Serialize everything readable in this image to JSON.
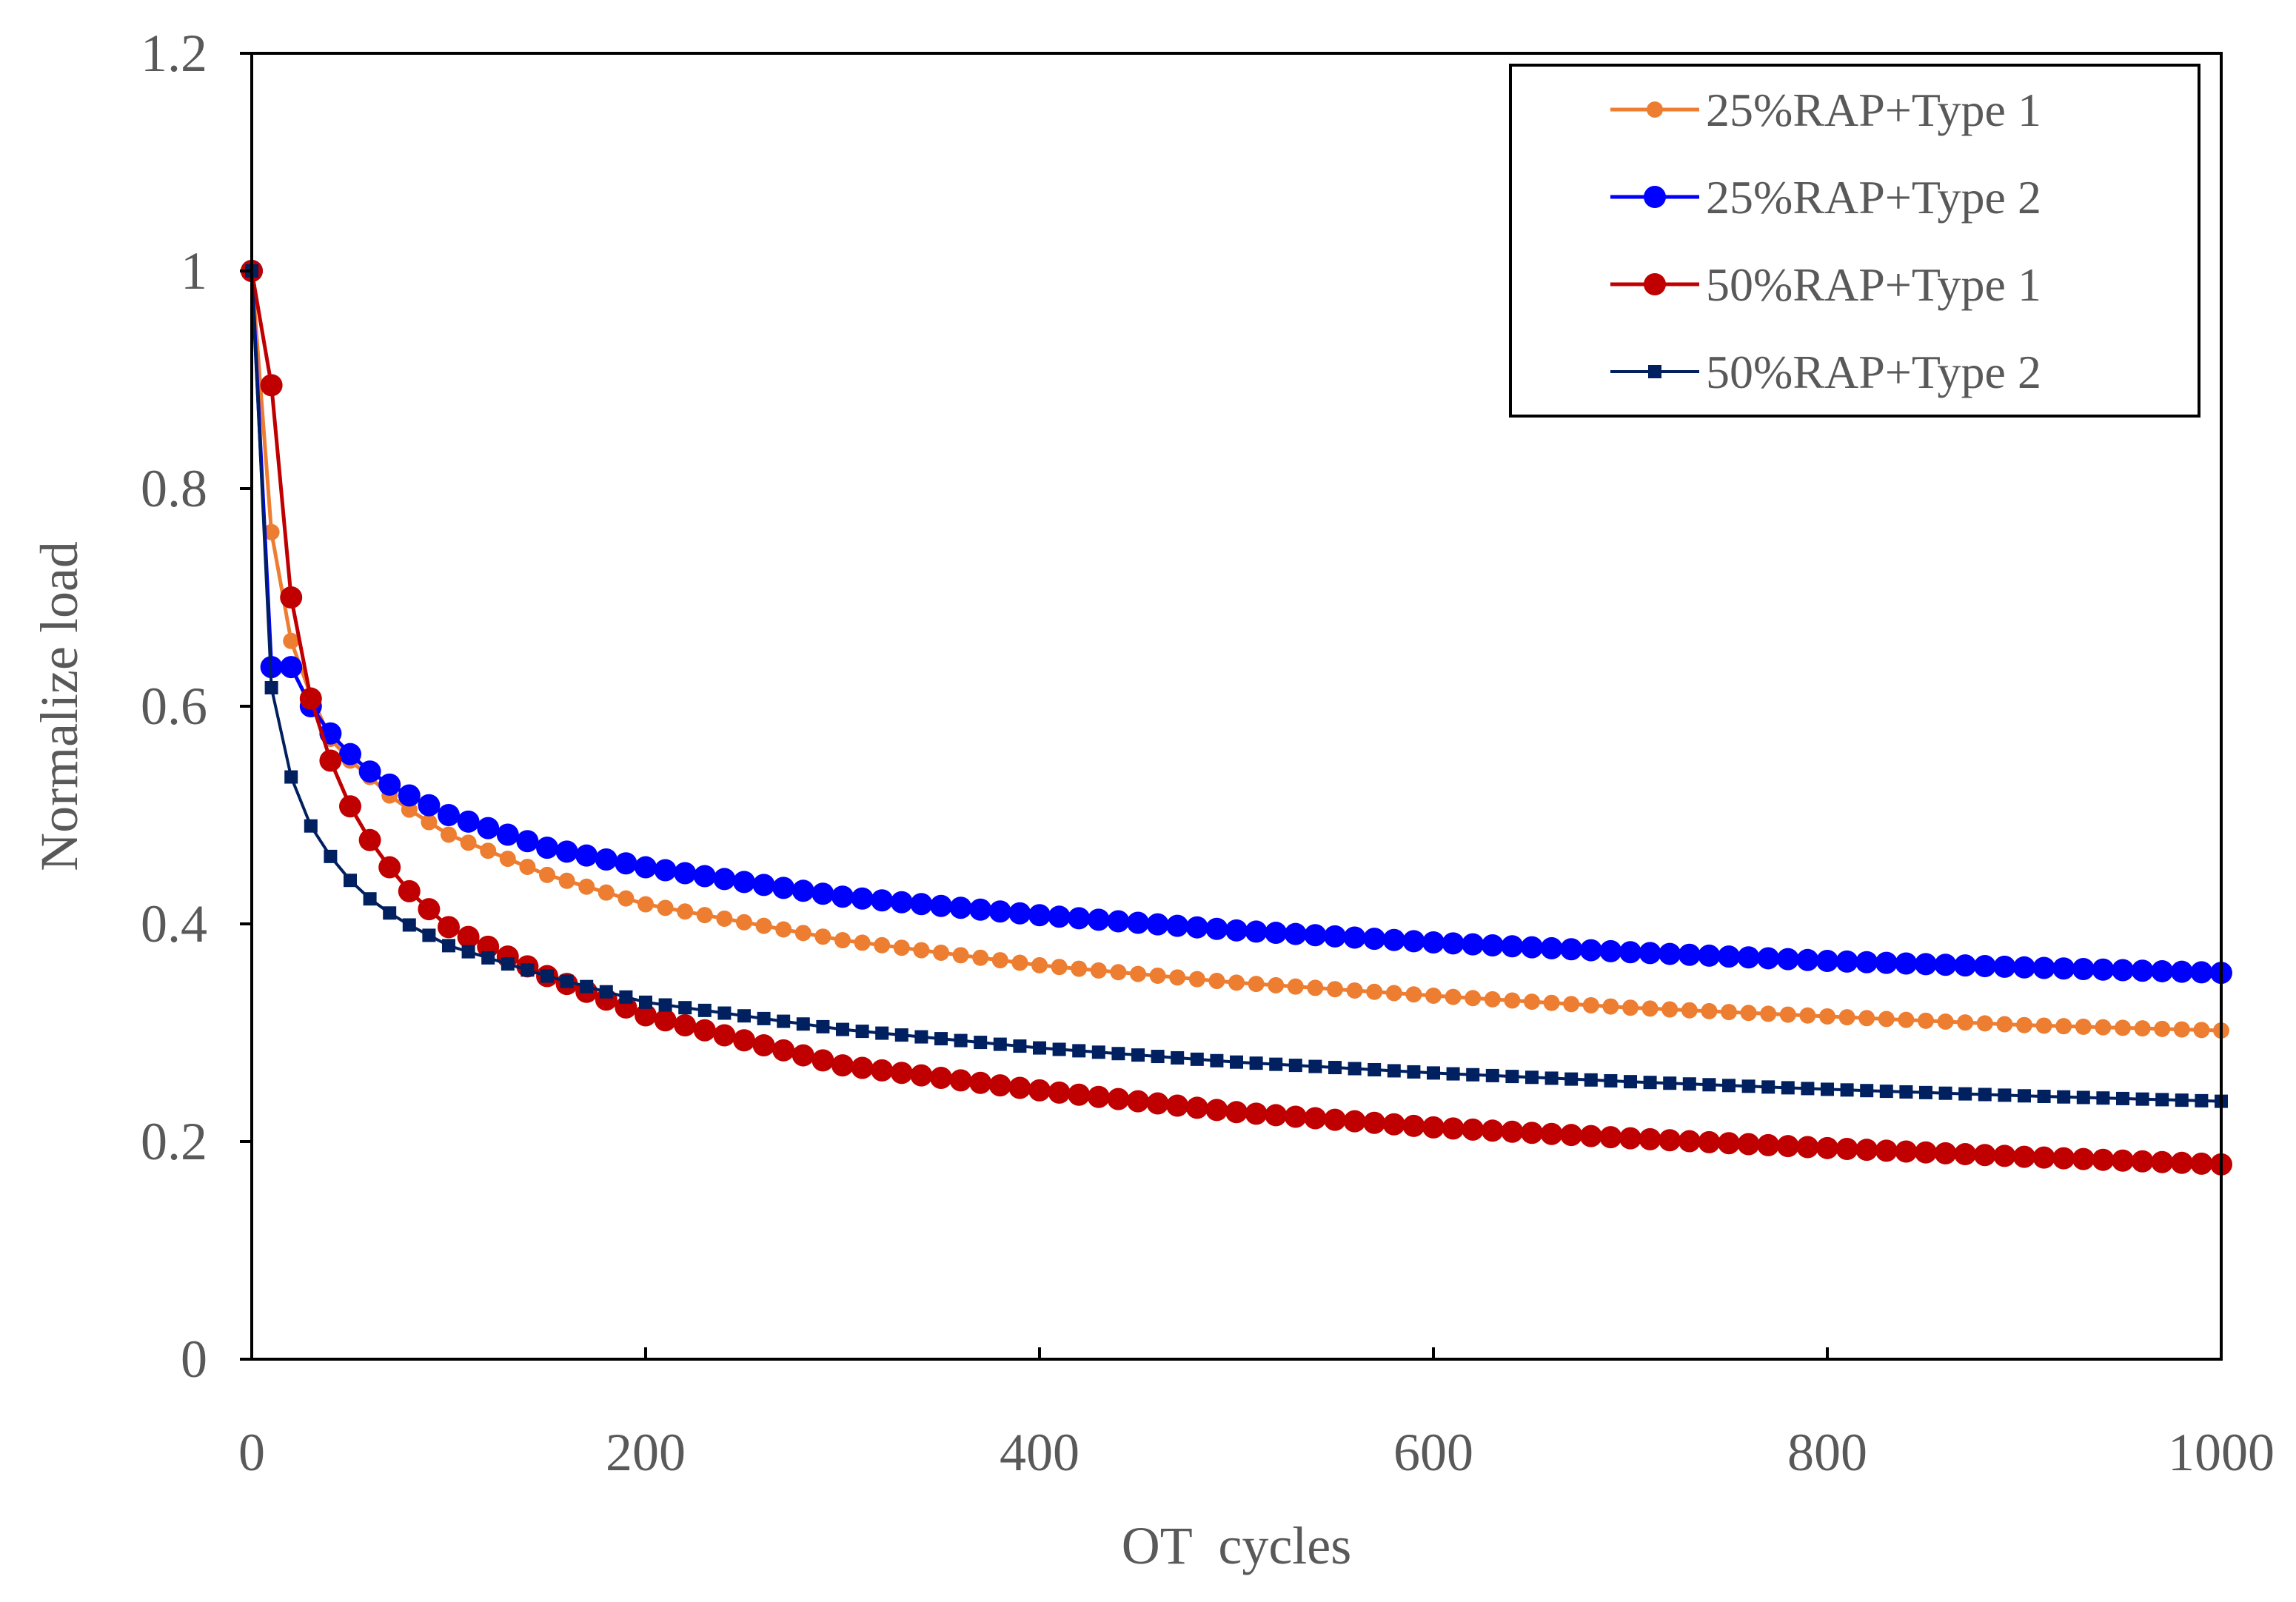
{
  "chart_data": {
    "type": "line",
    "title": "",
    "xlabel": "OT  cycles",
    "ylabel": "Normalize load",
    "xlim": [
      0,
      1000
    ],
    "ylim": [
      0,
      1.2
    ],
    "xticks": [
      0,
      200,
      400,
      600,
      800,
      1000
    ],
    "yticks": [
      0,
      0.2,
      0.4,
      0.6,
      0.8,
      1,
      1.2
    ],
    "xtick_labels": [
      "0",
      "200",
      "400",
      "600",
      "800",
      "1000"
    ],
    "ytick_labels": [
      "0",
      "0.2",
      "0.4",
      "0.6",
      "0.8",
      "1",
      "1.2"
    ],
    "grid": false,
    "legend_position": "top-right",
    "x_step": 10,
    "series": [
      {
        "name": "25%RAP+Type 1",
        "color": "#ED7D31",
        "marker": "circle",
        "marker_size": "small",
        "anchors": [
          [
            0,
            1
          ],
          [
            10,
            0.76
          ],
          [
            20,
            0.66
          ],
          [
            30,
            0.61
          ],
          [
            40,
            0.57
          ],
          [
            50,
            0.55
          ],
          [
            60,
            0.535
          ],
          [
            70,
            0.518
          ],
          [
            80,
            0.505
          ],
          [
            100,
            0.482
          ],
          [
            150,
            0.445
          ],
          [
            200,
            0.418
          ],
          [
            300,
            0.385
          ],
          [
            400,
            0.362
          ],
          [
            500,
            0.346
          ],
          [
            600,
            0.334
          ],
          [
            700,
            0.323
          ],
          [
            800,
            0.315
          ],
          [
            900,
            0.307
          ],
          [
            1000,
            0.302
          ]
        ]
      },
      {
        "name": "25%RAP+Type 2",
        "color": "#0000FF",
        "marker": "circle",
        "marker_size": "large",
        "anchors": [
          [
            0,
            1
          ],
          [
            10,
            0.636
          ],
          [
            20,
            0.636
          ],
          [
            30,
            0.6
          ],
          [
            40,
            0.575
          ],
          [
            50,
            0.556
          ],
          [
            60,
            0.54
          ],
          [
            70,
            0.528
          ],
          [
            80,
            0.518
          ],
          [
            100,
            0.5
          ],
          [
            150,
            0.47
          ],
          [
            200,
            0.452
          ],
          [
            300,
            0.425
          ],
          [
            400,
            0.408
          ],
          [
            500,
            0.394
          ],
          [
            600,
            0.383
          ],
          [
            700,
            0.374
          ],
          [
            800,
            0.366
          ],
          [
            900,
            0.36
          ],
          [
            1000,
            0.355
          ]
        ]
      },
      {
        "name": "50%RAP+Type 1",
        "color": "#C00000",
        "marker": "circle",
        "marker_size": "large",
        "anchors": [
          [
            0,
            1
          ],
          [
            10,
            0.895
          ],
          [
            20,
            0.7
          ],
          [
            30,
            0.607
          ],
          [
            40,
            0.55
          ],
          [
            50,
            0.508
          ],
          [
            60,
            0.477
          ],
          [
            70,
            0.452
          ],
          [
            80,
            0.43
          ],
          [
            100,
            0.397
          ],
          [
            150,
            0.352
          ],
          [
            200,
            0.316
          ],
          [
            300,
            0.27
          ],
          [
            400,
            0.247
          ],
          [
            500,
            0.227
          ],
          [
            600,
            0.213
          ],
          [
            700,
            0.203
          ],
          [
            800,
            0.194
          ],
          [
            900,
            0.186
          ],
          [
            1000,
            0.179
          ]
        ]
      },
      {
        "name": "50%RAP+Type 2",
        "color": "#002060",
        "marker": "square",
        "marker_size": "small",
        "anchors": [
          [
            0,
            1
          ],
          [
            10,
            0.617
          ],
          [
            20,
            0.535
          ],
          [
            30,
            0.49
          ],
          [
            40,
            0.462
          ],
          [
            50,
            0.44
          ],
          [
            60,
            0.423
          ],
          [
            70,
            0.41
          ],
          [
            80,
            0.399
          ],
          [
            100,
            0.38
          ],
          [
            150,
            0.352
          ],
          [
            200,
            0.328
          ],
          [
            300,
            0.303
          ],
          [
            400,
            0.286
          ],
          [
            500,
            0.273
          ],
          [
            600,
            0.263
          ],
          [
            700,
            0.255
          ],
          [
            800,
            0.248
          ],
          [
            900,
            0.242
          ],
          [
            1000,
            0.237
          ]
        ]
      }
    ]
  }
}
